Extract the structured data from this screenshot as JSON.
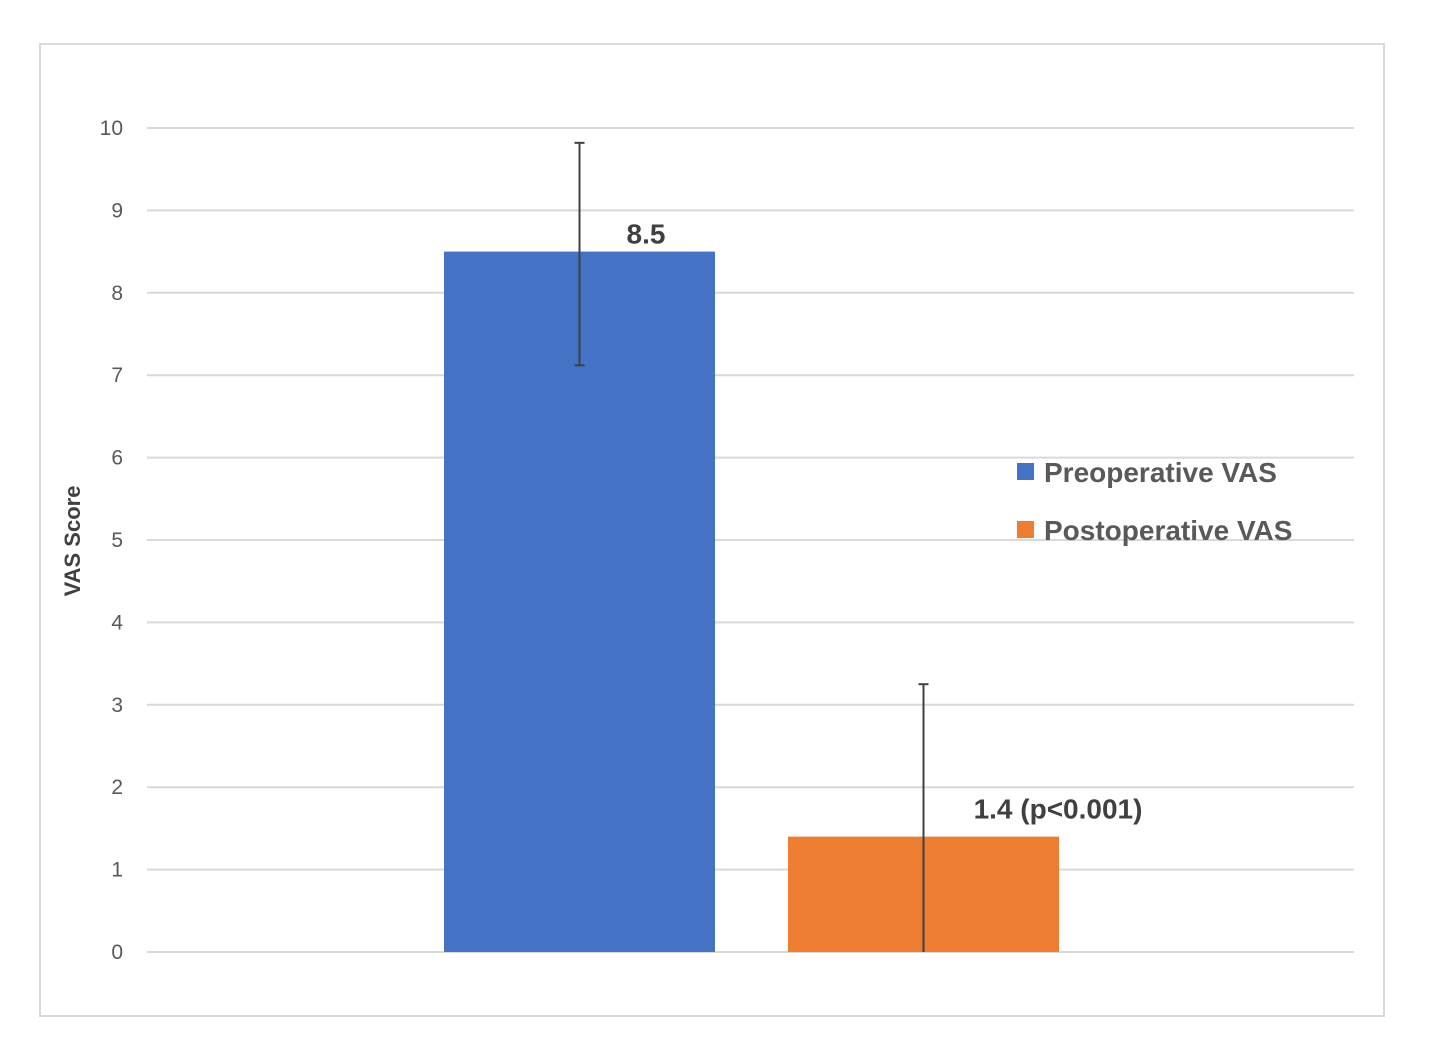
{
  "chart_data": {
    "type": "bar",
    "title": "",
    "xlabel": "",
    "ylabel": "VAS Score",
    "ylim": [
      0,
      10
    ],
    "yticks": [
      0,
      1,
      2,
      3,
      4,
      5,
      6,
      7,
      8,
      9,
      10
    ],
    "grid": true,
    "legend_position": "right",
    "series": [
      {
        "name": "Preoperative VAS",
        "value": 8.5,
        "error_low": 7.12,
        "error_high": 9.82,
        "data_label": "8.5",
        "color": "#4472c4"
      },
      {
        "name": "Postoperative VAS",
        "value": 1.4,
        "error_low": 0.0,
        "error_high": 3.25,
        "data_label": "1.4 (p<0.001)",
        "color": "#ed7d31"
      }
    ]
  }
}
